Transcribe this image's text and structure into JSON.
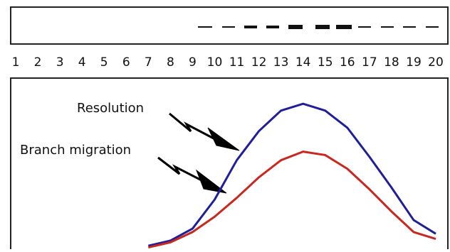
{
  "chart_data": {
    "type": "line",
    "categories": [
      "1",
      "2",
      "3",
      "4",
      "5",
      "6",
      "7",
      "8",
      "9",
      "10",
      "11",
      "12",
      "13",
      "14",
      "15",
      "16",
      "17",
      "18",
      "19",
      "20"
    ],
    "series": [
      {
        "name": "Resolution",
        "color": "#1f1f9a",
        "values": [
          null,
          null,
          null,
          null,
          null,
          null,
          2,
          5,
          12,
          29,
          52,
          69,
          81,
          85,
          81,
          71,
          54,
          36,
          17,
          9
        ]
      },
      {
        "name": "Branch migration",
        "color": "#c8281e",
        "values": [
          null,
          null,
          null,
          null,
          null,
          null,
          1,
          4,
          10,
          19,
          30,
          42,
          52,
          57,
          55,
          47,
          35,
          22,
          10,
          6
        ]
      }
    ],
    "ylim": [
      0,
      100
    ]
  }
}
